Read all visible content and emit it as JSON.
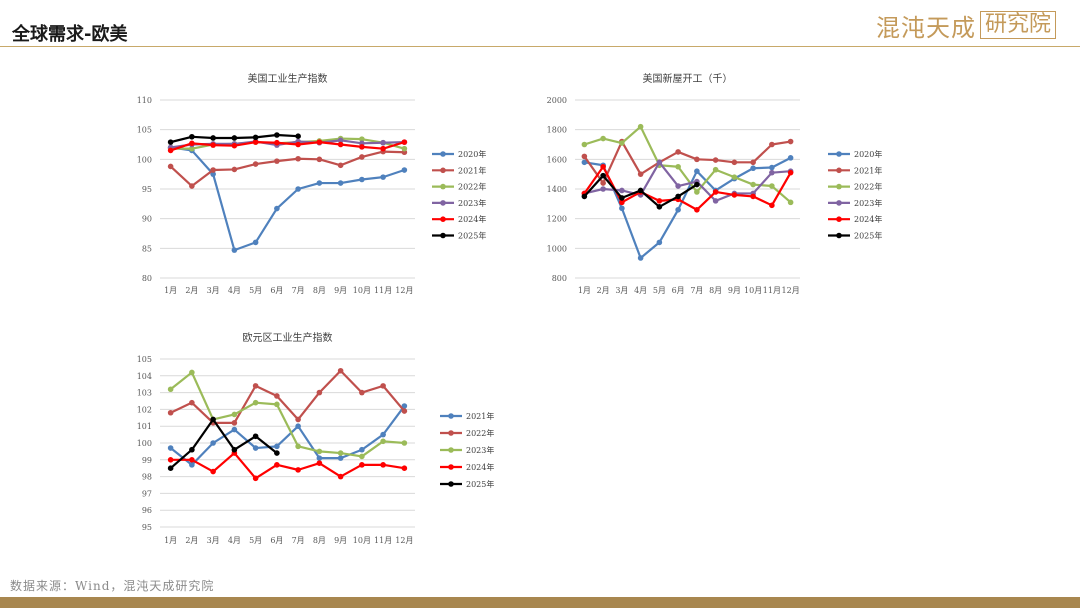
{
  "header": {
    "title": "全球需求-欧美",
    "logo_text": "混沌天成",
    "logo_box_text": "研究院"
  },
  "footer": {
    "source": "数据来源：Wind，混沌天成研究院"
  },
  "colors": {
    "2020年": "#4f81bd",
    "2021年": "#c0504d",
    "2022年": "#9bbb59",
    "2023年": "#8064a2",
    "2024年": "#ff0000",
    "2025年": "#000000",
    "header_rule": "#c8a96a",
    "footer_bar": "#a8874f"
  },
  "chart_data": [
    {
      "id": "us-ip",
      "type": "line",
      "title": "美国工业生产指数",
      "categories": [
        "1月",
        "2月",
        "3月",
        "4月",
        "5月",
        "6月",
        "7月",
        "8月",
        "9月",
        "10月",
        "11月",
        "12月"
      ],
      "ylim": [
        80,
        110
      ],
      "yticks": [
        80,
        85,
        90,
        95,
        100,
        105,
        110
      ],
      "grid": true,
      "legend_position": "right",
      "series": [
        {
          "name": "2020年",
          "color_key": "2020年",
          "values": [
            102,
            101.5,
            97.5,
            84.7,
            86,
            91.7,
            95,
            96,
            96,
            96.6,
            97,
            98.2
          ]
        },
        {
          "name": "2021年",
          "color_key": "2021年",
          "values": [
            98.8,
            95.5,
            98.2,
            98.3,
            99.2,
            99.7,
            100.1,
            100,
            99,
            100.4,
            101.3,
            101.2
          ]
        },
        {
          "name": "2022年",
          "color_key": "2022年",
          "values": [
            101.8,
            101.8,
            102.5,
            102.6,
            102.9,
            102.7,
            102.9,
            103.1,
            103.5,
            103.4,
            102.8,
            101.8
          ]
        },
        {
          "name": "2023年",
          "color_key": "2023年",
          "values": [
            102,
            102.5,
            102.6,
            102.6,
            103,
            102.4,
            103,
            102.8,
            103.2,
            102.7,
            102.8,
            102.9
          ]
        },
        {
          "name": "2024年",
          "color_key": "2024年",
          "values": [
            101.5,
            102.7,
            102.4,
            102.3,
            102.9,
            102.8,
            102.5,
            102.9,
            102.5,
            102.1,
            101.8,
            102.9
          ]
        },
        {
          "name": "2025年",
          "color_key": "2025年",
          "values": [
            102.9,
            103.8,
            103.6,
            103.6,
            103.7,
            104.1,
            103.9,
            null,
            null,
            null,
            null,
            null
          ]
        }
      ]
    },
    {
      "id": "us-housing",
      "type": "line",
      "title": "美国新屋开工（千）",
      "categories": [
        "1月",
        "2月",
        "3月",
        "4月",
        "5月",
        "6月",
        "7月",
        "8月",
        "9月",
        "10月",
        "11月",
        "12月"
      ],
      "ylim": [
        800,
        2000
      ],
      "yticks": [
        800,
        1000,
        1200,
        1400,
        1600,
        1800,
        2000
      ],
      "grid": true,
      "legend_position": "right",
      "series": [
        {
          "name": "2020年",
          "color_key": "2020年",
          "values": [
            1580,
            1560,
            1270,
            935,
            1040,
            1260,
            1520,
            1390,
            1470,
            1540,
            1545,
            1610
          ]
        },
        {
          "name": "2021年",
          "color_key": "2021年",
          "values": [
            1620,
            1440,
            1720,
            1500,
            1580,
            1650,
            1600,
            1595,
            1580,
            1580,
            1700,
            1720
          ]
        },
        {
          "name": "2022年",
          "color_key": "2022年",
          "values": [
            1700,
            1740,
            1710,
            1820,
            1560,
            1550,
            1380,
            1530,
            1480,
            1430,
            1420,
            1310
          ]
        },
        {
          "name": "2023年",
          "color_key": "2023年",
          "values": [
            1370,
            1400,
            1390,
            1360,
            1580,
            1420,
            1450,
            1320,
            1370,
            1370,
            1510,
            1520
          ]
        },
        {
          "name": "2024年",
          "color_key": "2024年",
          "values": [
            1370,
            1550,
            1310,
            1380,
            1320,
            1330,
            1260,
            1380,
            1360,
            1350,
            1290,
            1510
          ]
        },
        {
          "name": "2025年",
          "color_key": "2025年",
          "values": [
            1350,
            1490,
            1340,
            1390,
            1280,
            1350,
            1430,
            null,
            null,
            null,
            null,
            null
          ]
        }
      ]
    },
    {
      "id": "eu-ip",
      "type": "line",
      "title": "欧元区工业生产指数",
      "categories": [
        "1月",
        "2月",
        "3月",
        "4月",
        "5月",
        "6月",
        "7月",
        "8月",
        "9月",
        "10月",
        "11月",
        "12月"
      ],
      "ylim": [
        95,
        105
      ],
      "yticks": [
        95,
        96,
        97,
        98,
        99,
        100,
        101,
        102,
        103,
        104,
        105
      ],
      "grid": true,
      "legend_position": "right",
      "series": [
        {
          "name": "2021年",
          "color_key": "2020年",
          "values": [
            99.7,
            98.7,
            100,
            100.8,
            99.7,
            99.8,
            101,
            99.1,
            99.1,
            99.6,
            100.5,
            102.2
          ]
        },
        {
          "name": "2022年",
          "color_key": "2021年",
          "values": [
            101.8,
            102.4,
            101.2,
            101.2,
            103.4,
            102.8,
            101.4,
            103,
            104.3,
            103,
            103.4,
            101.9
          ]
        },
        {
          "name": "2023年",
          "color_key": "2022年",
          "values": [
            103.2,
            104.2,
            101.4,
            101.7,
            102.4,
            102.3,
            99.8,
            99.5,
            99.4,
            99.2,
            100.1,
            100
          ]
        },
        {
          "name": "2024年",
          "color_key": "2024年",
          "values": [
            99,
            99,
            98.3,
            99.4,
            97.9,
            98.7,
            98.4,
            98.8,
            98,
            98.7,
            98.7,
            98.5
          ]
        },
        {
          "name": "2025年",
          "color_key": "2025年",
          "values": [
            98.5,
            99.6,
            101.4,
            99.6,
            100.4,
            99.4,
            null,
            null,
            null,
            null,
            null,
            null
          ]
        }
      ]
    }
  ]
}
